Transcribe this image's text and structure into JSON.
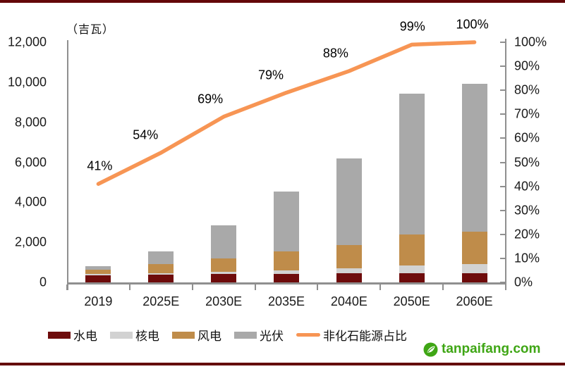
{
  "chart_data": {
    "type": "bar",
    "subtype": "stacked-bars-with-percentage-line",
    "title": "",
    "unit_label": "（吉瓦）",
    "categories": [
      "2019",
      "2025E",
      "2030E",
      "2035E",
      "2040E",
      "2050E",
      "2060E"
    ],
    "series": [
      {
        "name": "水电",
        "type": "bar",
        "color": "#6e0b0b",
        "values": [
          360,
          390,
          410,
          420,
          440,
          450,
          460
        ]
      },
      {
        "name": "核电",
        "type": "bar",
        "color": "#d2d2d2",
        "values": [
          50,
          70,
          130,
          180,
          250,
          380,
          460
        ]
      },
      {
        "name": "风电",
        "type": "bar",
        "color": "#bf8c4a",
        "values": [
          210,
          440,
          670,
          950,
          1180,
          1550,
          1630
        ]
      },
      {
        "name": "光伏",
        "type": "bar",
        "color": "#a9a9a9",
        "values": [
          200,
          650,
          1630,
          2990,
          4330,
          7060,
          7390
        ]
      },
      {
        "name": "非化石能源占比",
        "type": "line",
        "axis": "right",
        "color": "#f79554",
        "values": [
          41,
          54,
          69,
          79,
          88,
          99,
          100
        ],
        "point_labels": [
          "41%",
          "54%",
          "69%",
          "79%",
          "88%",
          "99%",
          "100%"
        ]
      }
    ],
    "left_axis": {
      "min": 0,
      "max": 12000,
      "tick_labels": [
        "12,000",
        "10,000",
        "8,000",
        "6,000",
        "4,000",
        "2,000",
        "0"
      ]
    },
    "right_axis": {
      "min": 0,
      "max": 100,
      "tick_labels": [
        "100%",
        "90%",
        "80%",
        "70%",
        "60%",
        "50%",
        "40%",
        "30%",
        "20%",
        "10%",
        "0%"
      ]
    },
    "legend_position": "bottom",
    "grid": false
  },
  "colors": {
    "page_border": "#640708",
    "axis": "#8f8f8f",
    "watermark_green": "#3fa615"
  },
  "watermark": {
    "text": "tanpaifang.com"
  }
}
